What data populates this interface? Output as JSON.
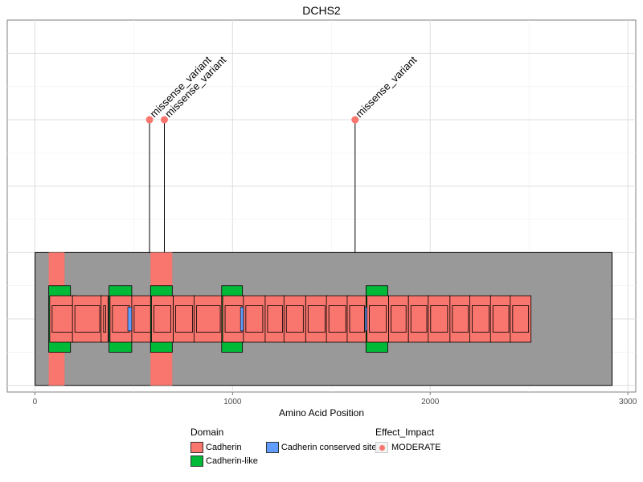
{
  "chart_data": {
    "type": "lollipop",
    "title": "DCHS2",
    "xlabel": "Amino Acid Position",
    "ylabel": "",
    "xlim": [
      -140,
      3040
    ],
    "ylim": [
      -0.1,
      5.5
    ],
    "x_ticks": [
      0,
      1000,
      2000,
      3000
    ],
    "grid": true,
    "protein": {
      "name": "DCHS2",
      "start": 1,
      "end": 2920
    },
    "regions": [
      {
        "type": "Cadherin",
        "start": 70,
        "end": 150,
        "ymin": 0,
        "ymax": 2,
        "color": "#f8766d"
      },
      {
        "type": "Cadherin",
        "start": 585,
        "end": 695,
        "ymin": 0,
        "ymax": 2,
        "color": "#f8766d"
      }
    ],
    "domains": [
      {
        "type": "Cadherin-like",
        "start": 70,
        "end": 180,
        "color": "#00ba38"
      },
      {
        "type": "Cadherin",
        "start": 75,
        "end": 210,
        "color": "#f8766d"
      },
      {
        "type": "Cadherin",
        "start": 190,
        "end": 340,
        "color": "#f8766d"
      },
      {
        "type": "Cadherin",
        "start": 335,
        "end": 370,
        "color": "#f8766d"
      },
      {
        "type": "Cadherin-like",
        "start": 375,
        "end": 490,
        "color": "#00ba38"
      },
      {
        "type": "Cadherin",
        "start": 380,
        "end": 490,
        "color": "#f8766d"
      },
      {
        "type": "Cadherin",
        "start": 490,
        "end": 600,
        "color": "#f8766d"
      },
      {
        "type": "Cadherin-like",
        "start": 585,
        "end": 695,
        "color": "#00ba38"
      },
      {
        "type": "Cadherin",
        "start": 590,
        "end": 700,
        "color": "#f8766d"
      },
      {
        "type": "Cadherin",
        "start": 700,
        "end": 810,
        "color": "#f8766d"
      },
      {
        "type": "Cadherin",
        "start": 805,
        "end": 950,
        "color": "#f8766d"
      },
      {
        "type": "Cadherin-like",
        "start": 945,
        "end": 1050,
        "color": "#00ba38"
      },
      {
        "type": "Cadherin",
        "start": 950,
        "end": 1060,
        "color": "#f8766d"
      },
      {
        "type": "Cadherin",
        "start": 1055,
        "end": 1165,
        "color": "#f8766d"
      },
      {
        "type": "Cadherin",
        "start": 1165,
        "end": 1265,
        "color": "#f8766d"
      },
      {
        "type": "Cadherin",
        "start": 1260,
        "end": 1370,
        "color": "#f8766d"
      },
      {
        "type": "Cadherin",
        "start": 1370,
        "end": 1480,
        "color": "#f8766d"
      },
      {
        "type": "Cadherin",
        "start": 1475,
        "end": 1585,
        "color": "#f8766d"
      },
      {
        "type": "Cadherin",
        "start": 1580,
        "end": 1680,
        "color": "#f8766d"
      },
      {
        "type": "Cadherin-like",
        "start": 1675,
        "end": 1785,
        "color": "#00ba38"
      },
      {
        "type": "Cadherin",
        "start": 1680,
        "end": 1790,
        "color": "#f8766d"
      },
      {
        "type": "Cadherin",
        "start": 1790,
        "end": 1890,
        "color": "#f8766d"
      },
      {
        "type": "Cadherin",
        "start": 1890,
        "end": 1995,
        "color": "#f8766d"
      },
      {
        "type": "Cadherin",
        "start": 1990,
        "end": 2100,
        "color": "#f8766d"
      },
      {
        "type": "Cadherin",
        "start": 2100,
        "end": 2205,
        "color": "#f8766d"
      },
      {
        "type": "Cadherin",
        "start": 2200,
        "end": 2310,
        "color": "#f8766d"
      },
      {
        "type": "Cadherin",
        "start": 2305,
        "end": 2410,
        "color": "#f8766d"
      },
      {
        "type": "Cadherin",
        "start": 2405,
        "end": 2510,
        "color": "#f8766d"
      }
    ],
    "conserved_sites": [
      {
        "type": "Cadherin conserved site",
        "start": 470,
        "end": 490,
        "color": "#619cff"
      },
      {
        "type": "Cadherin conserved site",
        "start": 1040,
        "end": 1055,
        "color": "#619cff"
      },
      {
        "type": "Cadherin conserved site",
        "start": 1670,
        "end": 1680,
        "color": "#619cff"
      }
    ],
    "variants": [
      {
        "position": 580,
        "height": 4,
        "label": "missense_variant",
        "impact": "MODERATE"
      },
      {
        "position": 655,
        "height": 4,
        "label": "missense_variant",
        "impact": "MODERATE"
      },
      {
        "position": 1620,
        "height": 4,
        "label": "missense_variant",
        "impact": "MODERATE"
      }
    ],
    "legend": {
      "placement": "bottom",
      "domain_title": "Domain",
      "domain_items": [
        {
          "label": "Cadherin",
          "color": "#f8766d"
        },
        {
          "label": "Cadherin-like",
          "color": "#00ba38"
        },
        {
          "label": "Cadherin conserved site",
          "color": "#619cff"
        }
      ],
      "impact_title": "Effect_Impact",
      "impact_items": [
        {
          "label": "MODERATE",
          "color": "#f8766d"
        }
      ]
    }
  }
}
